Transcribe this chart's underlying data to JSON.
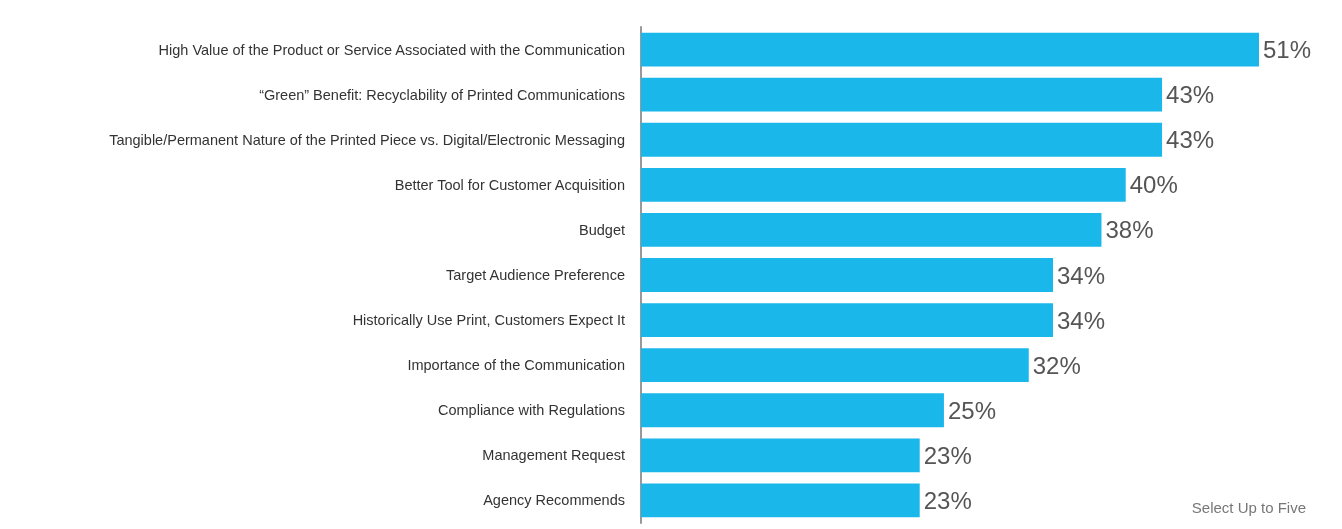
{
  "chart_data": {
    "type": "bar",
    "orientation": "horizontal",
    "categories": [
      "High Value of the Product or Service Associated with the Communication",
      "“Green” Benefit: Recyclability of Printed Communications",
      "Tangible/Permanent Nature of the Printed Piece vs. Digital/Electronic Messaging",
      "Better Tool for Customer Acquisition",
      "Budget",
      "Target Audience Preference",
      "Historically Use Print, Customers Expect It",
      "Importance of the Communication",
      "Compliance with Regulations",
      "Management Request",
      "Agency Recommends"
    ],
    "values": [
      51,
      43,
      43,
      40,
      38,
      34,
      34,
      32,
      25,
      23,
      23
    ],
    "value_labels": [
      "51%",
      "43%",
      "43%",
      "40%",
      "38%",
      "34%",
      "34%",
      "32%",
      "25%",
      "23%",
      "23%"
    ],
    "color": "#1ab7ea",
    "annotations": [
      "Select Up to Five"
    ]
  }
}
